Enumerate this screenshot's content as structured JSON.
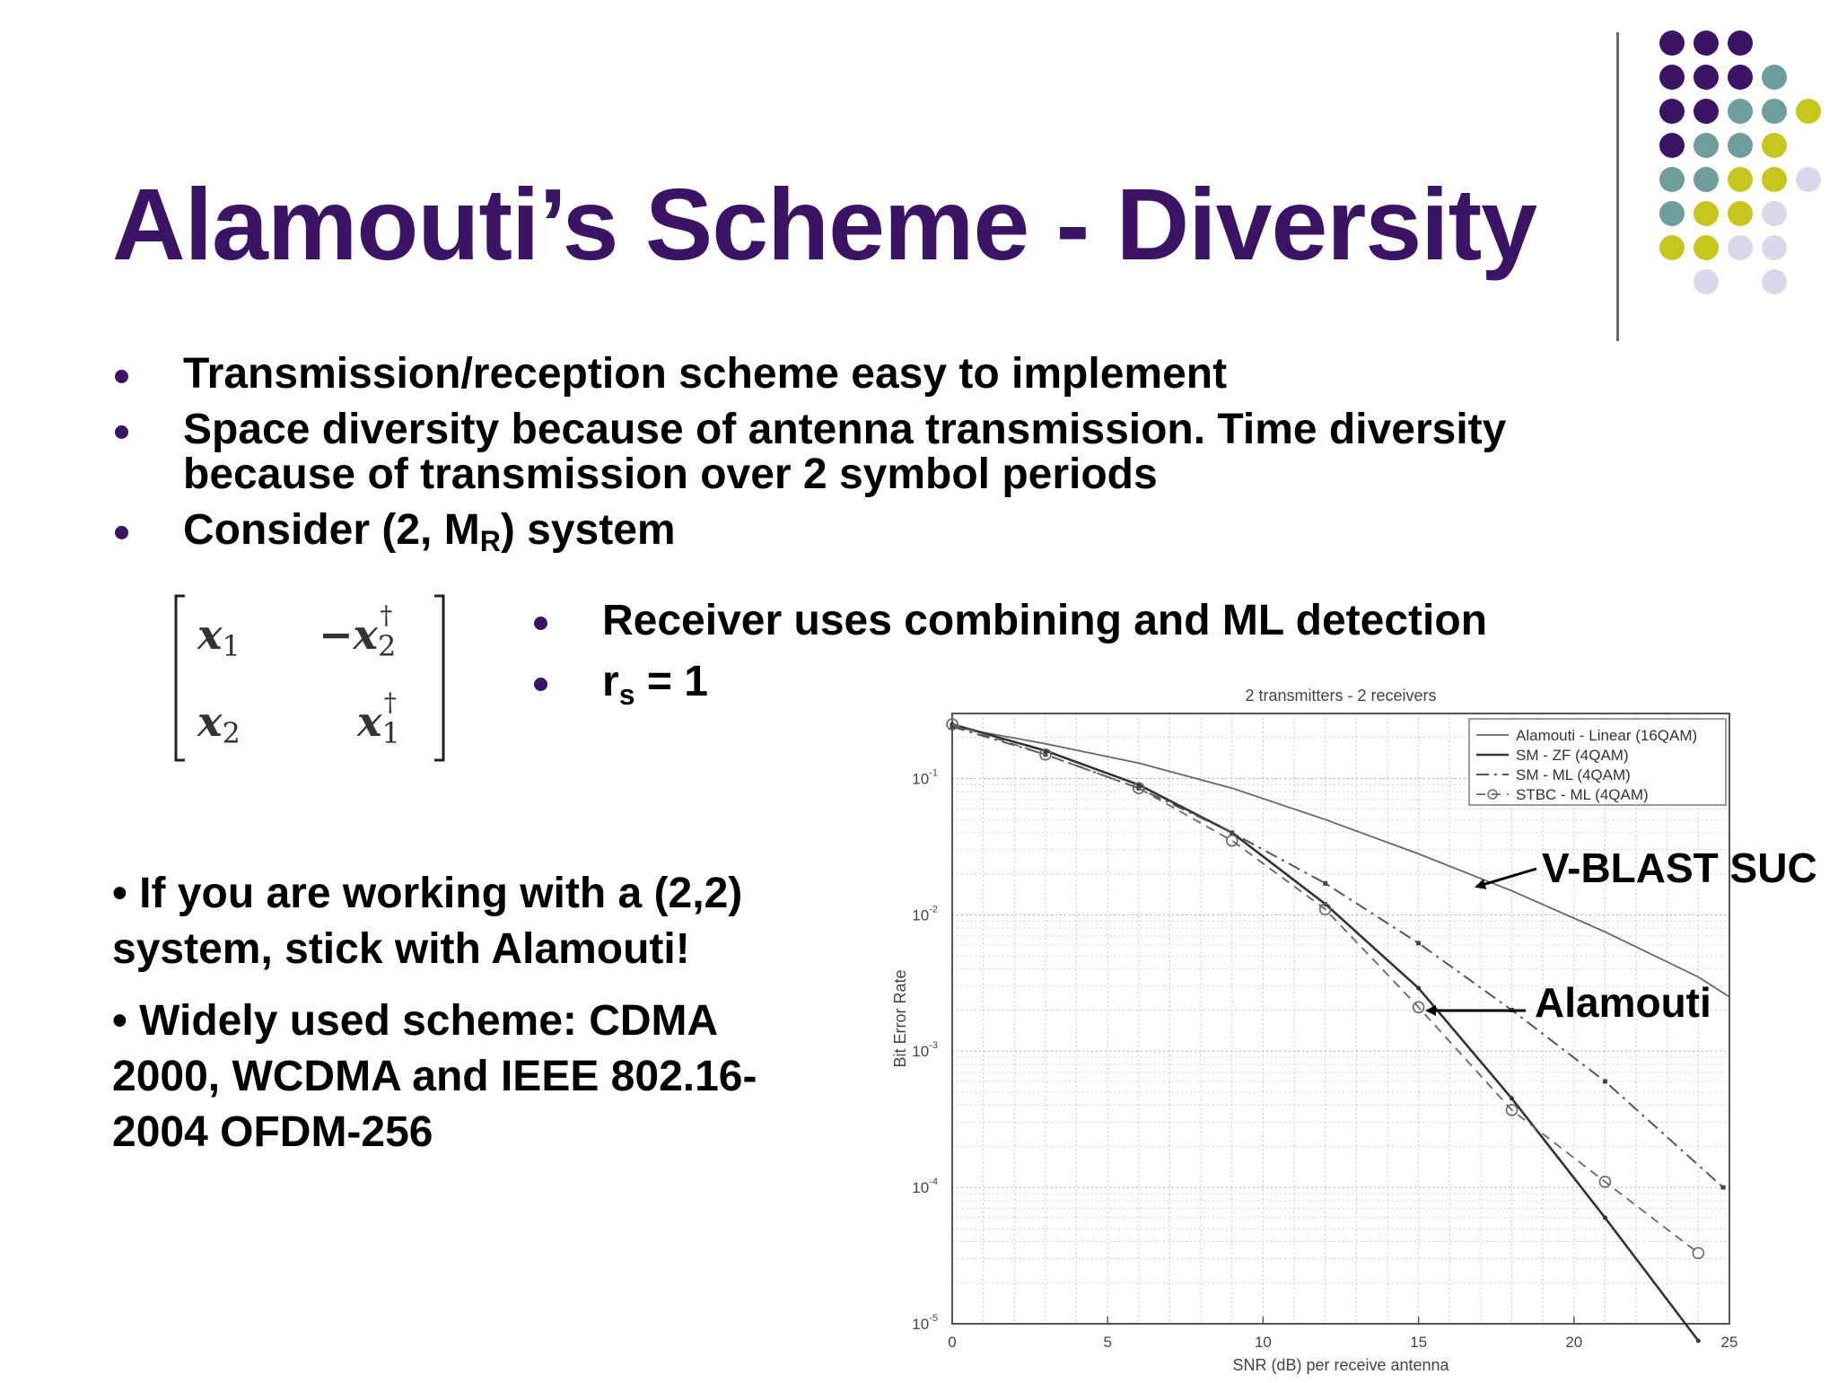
{
  "slide": {
    "title": "Alamouti’s Scheme - Diversity",
    "bullets": [
      {
        "text": "Transmission/reception scheme easy to implement"
      },
      {
        "text": "Space diversity because of antenna transmission. Time diversity because of transmission over 2 symbol periods"
      },
      {
        "prefix": "Consider (2, M",
        "sub": "R",
        "suffix": ") system"
      }
    ],
    "sub_bullets": [
      {
        "text": "Receiver uses combining and ML detection"
      },
      {
        "prefix": "r",
        "sub": "s",
        "suffix": " = 1"
      }
    ],
    "notes": [
      "• If you are working with a (2,2) system, stick with Alamouti!",
      "• Widely used scheme: CDMA 2000, WCDMA and IEEE 802.16-2004 OFDM-256"
    ],
    "callouts": {
      "vblast": "V-BLAST SUC",
      "alamouti": "Alamouti"
    },
    "matrix": {
      "entries": [
        [
          "x",
          "1",
          ""
        ],
        [
          "−x",
          "2",
          "†"
        ],
        [
          "x",
          "2",
          ""
        ],
        [
          "x",
          "1",
          "†"
        ]
      ]
    }
  },
  "colors": {
    "title": "#3c1466",
    "dot_purple": "#3c1466",
    "dot_teal": "#6f9c9c",
    "dot_olive": "#c6c61e",
    "dot_lavender": "#d8d8ea"
  },
  "chart_data": {
    "type": "line",
    "title": "2 transmitters - 2 receivers",
    "xlabel": "SNR (dB) per receive antenna",
    "ylabel": "Bit Error Rate",
    "xlim": [
      0,
      25
    ],
    "ylim": [
      1e-05,
      0.3
    ],
    "yscale": "log",
    "x_ticks": [
      "0",
      "5",
      "10",
      "15",
      "20",
      "25"
    ],
    "y_ticks": [
      {
        "base": "10",
        "exp": "-1"
      },
      {
        "base": "10",
        "exp": "-2"
      },
      {
        "base": "10",
        "exp": "-3"
      },
      {
        "base": "10",
        "exp": "-4"
      },
      {
        "base": "10",
        "exp": "-5"
      }
    ],
    "grid": true,
    "legend_position": "top-right",
    "series": [
      {
        "name": "Alamouti - Linear (16QAM)",
        "style": "solid-thin",
        "x": [
          0,
          3,
          6,
          9,
          12,
          15,
          18,
          21,
          24,
          25
        ],
        "y": [
          0.24,
          0.18,
          0.13,
          0.085,
          0.05,
          0.028,
          0.015,
          0.0075,
          0.0035,
          0.0025
        ]
      },
      {
        "name": "SM - ZF (4QAM)",
        "style": "solid-thick",
        "x": [
          0,
          3,
          6,
          9,
          12,
          15,
          18,
          21,
          24
        ],
        "y": [
          0.25,
          0.16,
          0.09,
          0.04,
          0.012,
          0.0029,
          0.00045,
          6e-05,
          7.5e-06
        ]
      },
      {
        "name": "SM - ML (4QAM)",
        "style": "dashdot",
        "x": [
          0,
          3,
          6,
          9,
          12,
          15,
          18,
          21,
          24.8
        ],
        "y": [
          0.24,
          0.15,
          0.085,
          0.04,
          0.017,
          0.0062,
          0.002,
          0.0006,
          0.0001
        ]
      },
      {
        "name": "STBC - ML (4QAM)",
        "style": "dashed-circle",
        "x": [
          0,
          3,
          6,
          9,
          12,
          15,
          18,
          21,
          24
        ],
        "y": [
          0.25,
          0.15,
          0.085,
          0.035,
          0.011,
          0.0021,
          0.00037,
          0.00011,
          3.3e-05
        ]
      }
    ]
  }
}
